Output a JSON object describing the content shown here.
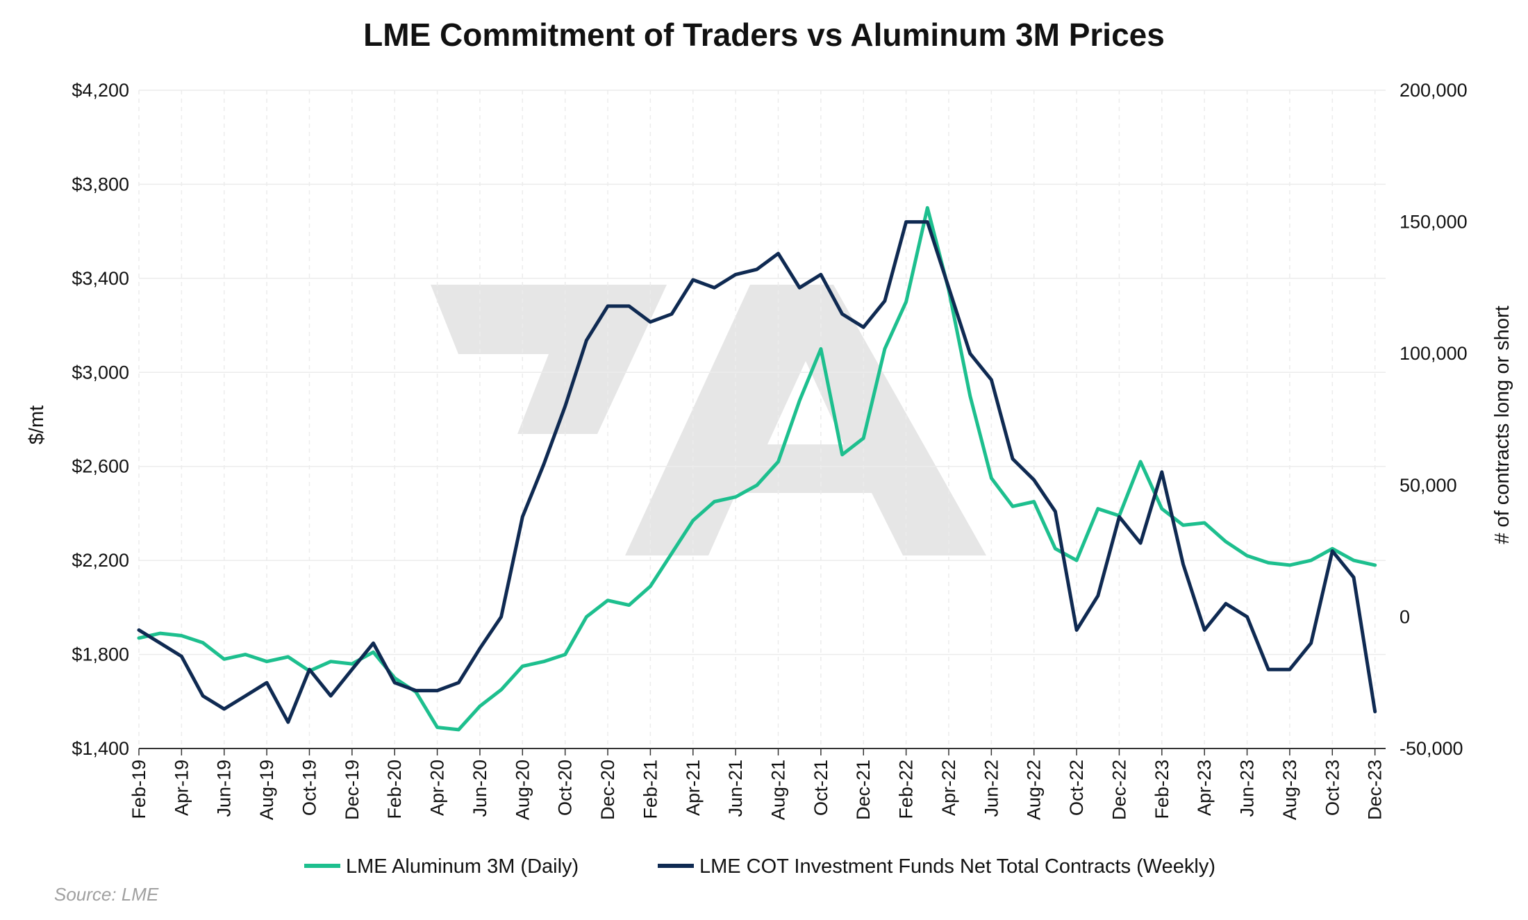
{
  "chart_data": {
    "type": "line",
    "title": "LME Commitment of Traders vs Aluminum 3M Prices",
    "ylabel": "$/mt",
    "y2label": "# of contracts long or short",
    "source": "Source: LME",
    "grid": true,
    "legend_position": "bottom",
    "x_range": [
      "2019-02",
      "2023-12"
    ],
    "ylim": [
      1400,
      4200
    ],
    "y2lim": [
      -50000,
      200000
    ],
    "y_ticks": [
      "$1,400",
      "$1,800",
      "$2,200",
      "$2,600",
      "$3,000",
      "$3,400",
      "$3,800",
      "$4,200"
    ],
    "y2_ticks": [
      "-50,000",
      "0",
      "50,000",
      "100,000",
      "150,000",
      "200,000"
    ],
    "x_ticks": [
      "Feb-19",
      "Apr-19",
      "Jun-19",
      "Aug-19",
      "Oct-19",
      "Dec-19",
      "Feb-20",
      "Apr-20",
      "Jun-20",
      "Aug-20",
      "Oct-20",
      "Dec-20",
      "Feb-21",
      "Apr-21",
      "Jun-21",
      "Aug-21",
      "Oct-21",
      "Dec-21",
      "Feb-22",
      "Apr-22",
      "Jun-22",
      "Aug-22",
      "Oct-22",
      "Dec-22",
      "Feb-23",
      "Apr-23",
      "Jun-23",
      "Aug-23",
      "Oct-23",
      "Dec-23"
    ],
    "series": [
      {
        "name": "LME Aluminum 3M (Daily)",
        "color": "#1dbf8e",
        "axis": "left",
        "points": [
          [
            "2019-02",
            1870
          ],
          [
            "2019-03",
            1890
          ],
          [
            "2019-04",
            1880
          ],
          [
            "2019-05",
            1850
          ],
          [
            "2019-06",
            1780
          ],
          [
            "2019-07",
            1800
          ],
          [
            "2019-08",
            1770
          ],
          [
            "2019-09",
            1790
          ],
          [
            "2019-10",
            1730
          ],
          [
            "2019-11",
            1770
          ],
          [
            "2019-12",
            1760
          ],
          [
            "2020-01",
            1810
          ],
          [
            "2020-02",
            1700
          ],
          [
            "2020-03",
            1640
          ],
          [
            "2020-04",
            1490
          ],
          [
            "2020-05",
            1480
          ],
          [
            "2020-06",
            1580
          ],
          [
            "2020-07",
            1650
          ],
          [
            "2020-08",
            1750
          ],
          [
            "2020-09",
            1770
          ],
          [
            "2020-10",
            1800
          ],
          [
            "2020-11",
            1960
          ],
          [
            "2020-12",
            2030
          ],
          [
            "2021-01",
            2010
          ],
          [
            "2021-02",
            2090
          ],
          [
            "2021-03",
            2230
          ],
          [
            "2021-04",
            2370
          ],
          [
            "2021-05",
            2450
          ],
          [
            "2021-06",
            2470
          ],
          [
            "2021-07",
            2520
          ],
          [
            "2021-08",
            2620
          ],
          [
            "2021-09",
            2880
          ],
          [
            "2021-10",
            3100
          ],
          [
            "2021-11",
            2650
          ],
          [
            "2021-12",
            2720
          ],
          [
            "2022-01",
            3100
          ],
          [
            "2022-02",
            3300
          ],
          [
            "2022-03",
            3700
          ],
          [
            "2022-04",
            3350
          ],
          [
            "2022-05",
            2900
          ],
          [
            "2022-06",
            2550
          ],
          [
            "2022-07",
            2430
          ],
          [
            "2022-08",
            2450
          ],
          [
            "2022-09",
            2250
          ],
          [
            "2022-10",
            2200
          ],
          [
            "2022-11",
            2420
          ],
          [
            "2022-12",
            2390
          ],
          [
            "2023-01",
            2620
          ],
          [
            "2023-02",
            2420
          ],
          [
            "2023-03",
            2350
          ],
          [
            "2023-04",
            2360
          ],
          [
            "2023-05",
            2280
          ],
          [
            "2023-06",
            2220
          ],
          [
            "2023-07",
            2190
          ],
          [
            "2023-08",
            2180
          ],
          [
            "2023-09",
            2200
          ],
          [
            "2023-10",
            2250
          ],
          [
            "2023-11",
            2200
          ],
          [
            "2023-12",
            2180
          ]
        ]
      },
      {
        "name": "LME COT Investment Funds Net Total Contracts (Weekly)",
        "color": "#0f2a52",
        "axis": "right",
        "points": [
          [
            "2019-02",
            -5000
          ],
          [
            "2019-03",
            -10000
          ],
          [
            "2019-04",
            -15000
          ],
          [
            "2019-05",
            -30000
          ],
          [
            "2019-06",
            -35000
          ],
          [
            "2019-07",
            -30000
          ],
          [
            "2019-08",
            -25000
          ],
          [
            "2019-09",
            -40000
          ],
          [
            "2019-10",
            -20000
          ],
          [
            "2019-11",
            -30000
          ],
          [
            "2019-12",
            -20000
          ],
          [
            "2020-01",
            -10000
          ],
          [
            "2020-02",
            -25000
          ],
          [
            "2020-03",
            -28000
          ],
          [
            "2020-04",
            -28000
          ],
          [
            "2020-05",
            -25000
          ],
          [
            "2020-06",
            -12000
          ],
          [
            "2020-07",
            0
          ],
          [
            "2020-08",
            38000
          ],
          [
            "2020-09",
            58000
          ],
          [
            "2020-10",
            80000
          ],
          [
            "2020-11",
            105000
          ],
          [
            "2020-12",
            118000
          ],
          [
            "2021-01",
            118000
          ],
          [
            "2021-02",
            112000
          ],
          [
            "2021-03",
            115000
          ],
          [
            "2021-04",
            128000
          ],
          [
            "2021-05",
            125000
          ],
          [
            "2021-06",
            130000
          ],
          [
            "2021-07",
            132000
          ],
          [
            "2021-08",
            138000
          ],
          [
            "2021-09",
            125000
          ],
          [
            "2021-10",
            130000
          ],
          [
            "2021-11",
            115000
          ],
          [
            "2021-12",
            110000
          ],
          [
            "2022-01",
            120000
          ],
          [
            "2022-02",
            150000
          ],
          [
            "2022-03",
            150000
          ],
          [
            "2022-04",
            125000
          ],
          [
            "2022-05",
            100000
          ],
          [
            "2022-06",
            90000
          ],
          [
            "2022-07",
            60000
          ],
          [
            "2022-08",
            52000
          ],
          [
            "2022-09",
            40000
          ],
          [
            "2022-10",
            -5000
          ],
          [
            "2022-11",
            8000
          ],
          [
            "2022-12",
            38000
          ],
          [
            "2023-01",
            28000
          ],
          [
            "2023-02",
            55000
          ],
          [
            "2023-03",
            20000
          ],
          [
            "2023-04",
            -5000
          ],
          [
            "2023-05",
            5000
          ],
          [
            "2023-06",
            0
          ],
          [
            "2023-07",
            -20000
          ],
          [
            "2023-08",
            -20000
          ],
          [
            "2023-09",
            -10000
          ],
          [
            "2023-10",
            25000
          ],
          [
            "2023-11",
            15000
          ],
          [
            "2023-12",
            -36000
          ]
        ]
      }
    ]
  }
}
